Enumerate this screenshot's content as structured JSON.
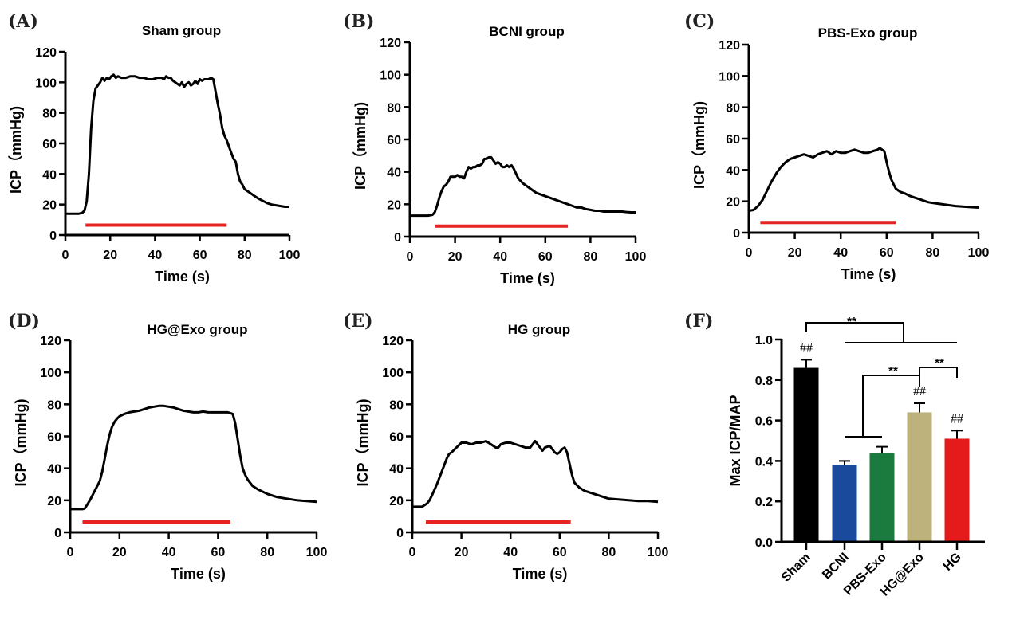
{
  "figure": {
    "colors": {
      "trace": "#000000",
      "stim_bar": "#e52320"
    }
  },
  "chart_data": [
    {
      "id": "A",
      "panel_label": "(A)",
      "type": "line",
      "title": "Sham group",
      "xlabel": "Time (s)",
      "ylabel": "ICP（mmHg)",
      "xlim": [
        0,
        100
      ],
      "ylim": [
        0,
        120
      ],
      "xticks": [
        "0",
        "20",
        "40",
        "60",
        "80",
        "100"
      ],
      "yticks": [
        "0",
        "20",
        "40",
        "60",
        "80",
        "100",
        "120"
      ],
      "stimulation": {
        "start": 9,
        "end": 72,
        "level": 6.5
      },
      "series": [
        {
          "name": "ICP",
          "x": [
            0,
            3,
            6,
            7.5,
            8.5,
            9.5,
            10.5,
            11.5,
            12.5,
            13.5,
            14.5,
            15.5,
            16.5,
            17.5,
            18.5,
            19.5,
            20.5,
            21.5,
            22.5,
            23.5,
            25,
            27,
            29,
            31,
            33,
            35,
            37,
            39,
            41,
            43,
            44,
            45,
            46,
            47,
            48,
            49,
            50,
            51,
            52,
            53,
            54,
            55,
            56,
            57,
            58,
            59,
            60,
            61,
            62,
            63,
            64,
            65,
            66,
            67,
            68,
            69,
            70,
            71,
            72,
            73,
            74,
            75,
            76,
            77,
            78,
            79,
            80,
            82,
            84,
            86,
            88,
            90,
            92,
            94,
            96,
            98,
            100
          ],
          "y": [
            14,
            14,
            14,
            14.5,
            16,
            22,
            40,
            70,
            88,
            96,
            98,
            100,
            103,
            101,
            103,
            102,
            104,
            105,
            103,
            104,
            103,
            103,
            104,
            104,
            103,
            103,
            102,
            102,
            103,
            103,
            102,
            104,
            103,
            103,
            101,
            100,
            99,
            98,
            100,
            97,
            99,
            100,
            98,
            99,
            101,
            99,
            102,
            101,
            102,
            102,
            102,
            103,
            102,
            94,
            86,
            79,
            70,
            65,
            62,
            58,
            54,
            50,
            48,
            40,
            35,
            33,
            30,
            28,
            26,
            24,
            22.5,
            21,
            20,
            19.5,
            19,
            18.5,
            18.5
          ]
        }
      ]
    },
    {
      "id": "B",
      "panel_label": "(B)",
      "type": "line",
      "title": "BCNI group",
      "xlabel": "Time (s)",
      "ylabel": "ICP（mmHg)",
      "xlim": [
        0,
        100
      ],
      "ylim": [
        0,
        120
      ],
      "xticks": [
        "0",
        "20",
        "40",
        "60",
        "80",
        "100"
      ],
      "yticks": [
        "0",
        "20",
        "40",
        "60",
        "80",
        "100",
        "120"
      ],
      "stimulation": {
        "start": 11,
        "end": 70,
        "level": 6.5
      },
      "series": [
        {
          "name": "ICP",
          "x": [
            0,
            4,
            8,
            10,
            11,
            12,
            13,
            14,
            15,
            16,
            17,
            18,
            19,
            20,
            21,
            22,
            23,
            24,
            25,
            26,
            27,
            28,
            29,
            30,
            31,
            32,
            33,
            34,
            35,
            36,
            37,
            38,
            39,
            40,
            41,
            42,
            43,
            44,
            45,
            46,
            47,
            48,
            50,
            52,
            54,
            56,
            58,
            60,
            62,
            64,
            66,
            68,
            70,
            72,
            74,
            76,
            78,
            80,
            82,
            84,
            86,
            88,
            90,
            92,
            94,
            96,
            98,
            100
          ],
          "y": [
            13,
            13,
            13,
            13.5,
            15,
            19,
            24,
            28,
            31,
            32,
            34,
            37,
            37,
            37,
            38,
            37,
            37,
            36,
            40,
            43,
            42,
            43,
            43,
            44,
            44,
            45,
            48,
            48,
            49,
            49,
            47,
            45,
            46,
            45,
            43,
            43,
            44,
            43,
            44,
            42,
            39,
            36,
            33,
            31,
            29,
            27,
            26,
            25,
            24,
            23,
            22,
            21,
            20,
            19,
            18,
            18,
            17,
            16.5,
            16,
            16,
            15.5,
            15.5,
            15.5,
            15.5,
            15.5,
            15.2,
            15,
            15
          ]
        }
      ]
    },
    {
      "id": "C",
      "panel_label": "(C)",
      "type": "line",
      "title": "PBS-Exo group",
      "xlabel": "Time (s)",
      "ylabel": "ICP（mmHg)",
      "xlim": [
        0,
        100
      ],
      "ylim": [
        0,
        120
      ],
      "xticks": [
        "0",
        "20",
        "40",
        "60",
        "80",
        "100"
      ],
      "yticks": [
        "0",
        "20",
        "40",
        "60",
        "80",
        "100",
        "120"
      ],
      "stimulation": {
        "start": 5,
        "end": 64,
        "level": 6.5
      },
      "series": [
        {
          "name": "ICP",
          "x": [
            0,
            2,
            4,
            6,
            8,
            10,
            12,
            14,
            16,
            18,
            20,
            22,
            24,
            26,
            28,
            30,
            32,
            34,
            36,
            38,
            40,
            42,
            44,
            46,
            48,
            50,
            52,
            54,
            56,
            57,
            58,
            59,
            60,
            61,
            62,
            63,
            64,
            65,
            66,
            68,
            70,
            72,
            75,
            78,
            80,
            85,
            90,
            95,
            100
          ],
          "y": [
            14,
            14.5,
            17,
            21,
            27,
            33,
            38,
            42,
            45,
            47,
            48,
            49,
            50,
            49,
            48,
            50,
            51,
            52,
            50,
            52,
            51,
            51,
            52,
            53,
            52,
            51,
            51,
            52,
            53,
            54,
            53,
            52,
            45,
            39,
            34,
            31,
            28,
            27,
            26,
            25,
            23.5,
            22.5,
            21,
            19.5,
            19,
            18,
            17,
            16.5,
            16
          ]
        }
      ]
    },
    {
      "id": "D",
      "panel_label": "(D)",
      "type": "line",
      "title": "HG@Exo group",
      "xlabel": "Time (s)",
      "ylabel": "ICP（mmHg)",
      "xlim": [
        0,
        100
      ],
      "ylim": [
        0,
        120
      ],
      "xticks": [
        "0",
        "20",
        "40",
        "60",
        "80",
        "100"
      ],
      "yticks": [
        "0",
        "20",
        "40",
        "60",
        "80",
        "100",
        "120"
      ],
      "stimulation": {
        "start": 5,
        "end": 65,
        "level": 6.5
      },
      "series": [
        {
          "name": "ICP",
          "x": [
            0,
            3,
            5,
            6,
            8,
            10,
            12,
            13,
            14,
            15,
            16,
            17,
            18,
            19,
            20,
            22,
            24,
            26,
            28,
            30,
            32,
            34,
            36,
            38,
            40,
            42,
            44,
            46,
            48,
            50,
            52,
            54,
            56,
            58,
            60,
            62,
            64,
            66,
            67,
            68,
            69,
            70,
            71,
            72,
            74,
            76,
            78,
            80,
            84,
            88,
            92,
            96,
            100
          ],
          "y": [
            14.5,
            14.5,
            14.5,
            15,
            20,
            26,
            32,
            38,
            46,
            54,
            61,
            66,
            69,
            71,
            72.5,
            74,
            75,
            75.5,
            76,
            77,
            78,
            78.5,
            79,
            79,
            78.5,
            78,
            77,
            76,
            75.5,
            75,
            75,
            75.5,
            75,
            75,
            75,
            75,
            75,
            74,
            68,
            58,
            48,
            40,
            36,
            33,
            29,
            27,
            25.5,
            24,
            22,
            21,
            20,
            19.5,
            19
          ]
        }
      ]
    },
    {
      "id": "E",
      "panel_label": "(E)",
      "type": "line",
      "title": "HG group",
      "xlabel": "Time (s)",
      "ylabel": "ICP（mmHg)",
      "xlim": [
        0,
        100
      ],
      "ylim": [
        0,
        120
      ],
      "xticks": [
        "0",
        "20",
        "40",
        "60",
        "80",
        "100"
      ],
      "yticks": [
        "0",
        "20",
        "40",
        "60",
        "80",
        "100",
        "120"
      ],
      "stimulation": {
        "start": 5.5,
        "end": 64.5,
        "level": 6.5
      },
      "series": [
        {
          "name": "ICP",
          "x": [
            0,
            2,
            4,
            5,
            6,
            7,
            8,
            10,
            12,
            14,
            15,
            16,
            18,
            20,
            22,
            24,
            26,
            28,
            30,
            32,
            34,
            35,
            36,
            38,
            40,
            42,
            44,
            46,
            48,
            50,
            51,
            52,
            53,
            54,
            56,
            57,
            58,
            59,
            60,
            61,
            62,
            63,
            64,
            65,
            66,
            68,
            70,
            72,
            74,
            76,
            78,
            80,
            84,
            88,
            92,
            96,
            100
          ],
          "y": [
            16,
            16,
            16,
            17,
            18,
            20,
            23,
            30,
            38,
            46,
            49,
            50,
            53,
            56,
            56,
            55,
            56,
            56,
            57,
            55,
            53,
            53,
            55,
            56,
            56,
            55,
            54,
            53,
            53,
            57,
            55,
            53,
            51,
            53,
            54,
            52,
            50,
            49,
            50,
            52,
            53,
            50,
            43,
            36,
            31,
            28,
            26,
            25,
            24,
            23,
            22,
            21,
            20.5,
            20,
            19.5,
            19.5,
            19
          ]
        }
      ]
    },
    {
      "id": "F",
      "panel_label": "(F)",
      "type": "bar",
      "title": "",
      "xlabel": "",
      "ylabel": "Max ICP/MAP",
      "ylim": [
        0,
        1.0
      ],
      "yticks": [
        "0.0",
        "0.2",
        "0.4",
        "0.6",
        "0.8",
        "1.0"
      ],
      "categories": [
        "Sham",
        "BCNI",
        "PBS-Exo",
        "HG@Exo",
        "HG"
      ],
      "values": [
        0.86,
        0.38,
        0.44,
        0.64,
        0.51
      ],
      "errors": [
        0.04,
        0.02,
        0.03,
        0.045,
        0.04
      ],
      "colors": [
        "#000000",
        "#1a4a9c",
        "#1b7a3e",
        "#bdb27c",
        "#e51b1b"
      ],
      "bar_annotations": [
        "##",
        "",
        "",
        "##",
        "##"
      ],
      "significance": [
        {
          "from": "Sham",
          "to": [
            "BCNI",
            "PBS-Exo",
            "HG@Exo",
            "HG"
          ],
          "label": "**"
        },
        {
          "from": [
            "BCNI",
            "PBS-Exo"
          ],
          "to": "HG@Exo",
          "label": "**"
        },
        {
          "from": "HG@Exo",
          "to": "HG",
          "label": "**"
        }
      ]
    }
  ]
}
